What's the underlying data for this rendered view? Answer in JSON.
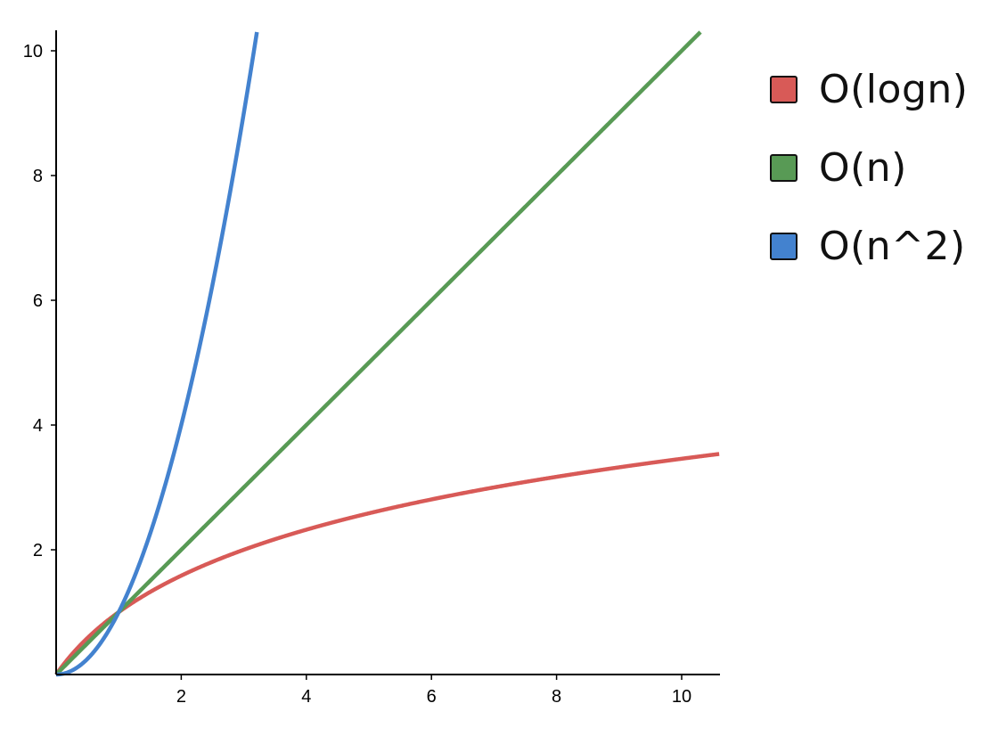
{
  "chart_data": {
    "type": "line",
    "title": "",
    "xlabel": "",
    "ylabel": "",
    "xlim": [
      0,
      10.6
    ],
    "ylim": [
      0,
      10.3
    ],
    "x_ticks": [
      2,
      4,
      6,
      8,
      10
    ],
    "y_ticks": [
      2,
      4,
      6,
      8,
      10
    ],
    "grid": false,
    "legend_position": "right",
    "series": [
      {
        "name": "O(logn)",
        "color": "#d85a57",
        "function": "log2(x+1)"
      },
      {
        "name": "O(n)",
        "color": "#589a55",
        "function": "x"
      },
      {
        "name": "O(n^2)",
        "color": "#4382cf",
        "function": "x^2"
      }
    ]
  }
}
